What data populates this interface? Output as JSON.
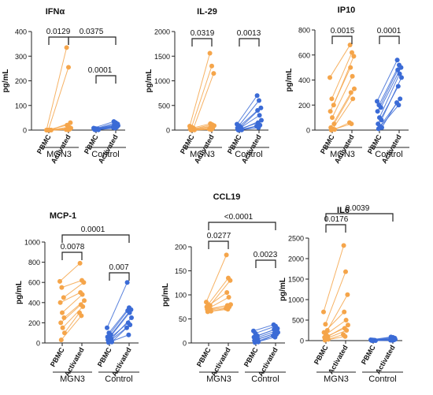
{
  "colors": {
    "mgn3": "#F5A54A",
    "control": "#3B6BD6",
    "axis": "#222222"
  },
  "chart_data": [
    {
      "type": "scatter",
      "title": "IFNα",
      "ylabel": "pg/mL",
      "ylim": [
        0,
        400
      ],
      "yticks": [
        "0",
        "100",
        "200",
        "300",
        "400"
      ],
      "xticks": [
        "PBMC",
        "Activated",
        "PBMC",
        "Activated"
      ],
      "groups": [
        "MGN3",
        "Control"
      ],
      "series": [
        {
          "group": "MGN3",
          "pbmc": [
            0,
            0,
            0,
            0,
            0,
            0,
            0,
            0,
            0,
            0
          ],
          "activated": [
            335,
            255,
            30,
            20,
            12,
            8,
            5,
            3,
            2,
            1
          ]
        },
        {
          "group": "Control",
          "pbmc": [
            8,
            6,
            5,
            4,
            3,
            3,
            2,
            2,
            1,
            1
          ],
          "activated": [
            35,
            30,
            25,
            22,
            20,
            18,
            15,
            12,
            10,
            8
          ]
        }
      ],
      "annotations": [
        "0.0129",
        "0.0375",
        "0.0001"
      ]
    },
    {
      "type": "scatter",
      "title": "IL-29",
      "ylabel": "pg/mL",
      "ylim": [
        0,
        2000
      ],
      "yticks": [
        "0",
        "500",
        "1000",
        "1500",
        "2000"
      ],
      "xticks": [
        "PBMC",
        "Activated",
        "PBMC",
        "Activated"
      ],
      "groups": [
        "MGN3",
        "Control"
      ],
      "series": [
        {
          "group": "MGN3",
          "pbmc": [
            80,
            60,
            40,
            30,
            20,
            15,
            10,
            5,
            3,
            0
          ],
          "activated": [
            1560,
            1300,
            1150,
            130,
            110,
            90,
            60,
            40,
            20,
            10
          ]
        },
        {
          "group": "Control",
          "pbmc": [
            120,
            90,
            60,
            40,
            30,
            20,
            10,
            5,
            3,
            0
          ],
          "activated": [
            700,
            600,
            450,
            400,
            300,
            200,
            150,
            100,
            80,
            50
          ]
        }
      ],
      "annotations": [
        "0.0319",
        "0.0013"
      ]
    },
    {
      "type": "scatter",
      "title": "IP10",
      "ylabel": "pg/mL",
      "ylim": [
        0,
        800
      ],
      "yticks": [
        "0",
        "200",
        "400",
        "600",
        "800"
      ],
      "xticks": [
        "PBMC",
        "Activated",
        "PBMC",
        "Activated"
      ],
      "groups": [
        "MGN3",
        "Control"
      ],
      "series": [
        {
          "group": "MGN3",
          "pbmc": [
            420,
            250,
            200,
            150,
            100,
            50,
            20,
            10,
            5,
            0
          ],
          "activated": [
            680,
            620,
            590,
            500,
            430,
            330,
            300,
            250,
            60,
            50
          ]
        },
        {
          "group": "Control",
          "pbmc": [
            230,
            200,
            180,
            150,
            100,
            80,
            50,
            30,
            20,
            10
          ],
          "activated": [
            560,
            520,
            500,
            480,
            450,
            420,
            350,
            250,
            220,
            200
          ]
        }
      ],
      "annotations": [
        "0.0015",
        "0.0001"
      ]
    },
    {
      "type": "scatter",
      "title": "MCP-1",
      "ylabel": "pg/mL",
      "ylim": [
        0,
        1000
      ],
      "yticks": [
        "0",
        "200",
        "400",
        "600",
        "800",
        "1000"
      ],
      "xticks": [
        "PBMC",
        "Activated",
        "PBMC",
        "Activated"
      ],
      "groups": [
        "MGN3",
        "Control"
      ],
      "series": [
        {
          "group": "MGN3",
          "pbmc": [
            610,
            550,
            450,
            400,
            300,
            250,
            200,
            150,
            100,
            30
          ],
          "activated": [
            790,
            620,
            600,
            500,
            480,
            420,
            380,
            360,
            300,
            270
          ]
        },
        {
          "group": "Control",
          "pbmc": [
            150,
            100,
            80,
            60,
            50,
            40,
            30,
            20,
            10,
            5
          ],
          "activated": [
            600,
            350,
            330,
            320,
            300,
            250,
            200,
            180,
            150,
            80
          ]
        }
      ],
      "annotations": [
        "0.0078",
        "0.0001",
        "0.007"
      ]
    },
    {
      "type": "scatter",
      "title": "CCL19",
      "ylabel": "pg/mL",
      "ylim": [
        0,
        200
      ],
      "yticks": [
        "0",
        "50",
        "100",
        "150",
        "200"
      ],
      "xticks": [
        "PBMC",
        "Activated",
        "PBMC",
        "Activated"
      ],
      "groups": [
        "MGN3",
        "Control"
      ],
      "series": [
        {
          "group": "MGN3",
          "pbmc": [
            85,
            80,
            78,
            75,
            72,
            70,
            70,
            68,
            66,
            65
          ],
          "activated": [
            183,
            135,
            130,
            105,
            95,
            80,
            78,
            75,
            72,
            70
          ]
        },
        {
          "group": "Control",
          "pbmc": [
            25,
            20,
            15,
            12,
            10,
            8,
            5,
            3,
            2,
            1
          ],
          "activated": [
            38,
            35,
            30,
            28,
            25,
            22,
            20,
            18,
            15,
            12
          ]
        }
      ],
      "annotations": [
        "0.0277",
        "<0.0001",
        "0.0023"
      ]
    },
    {
      "type": "scatter",
      "title": "IL6",
      "ylabel": "pg/mL",
      "ylim": [
        0,
        2500
      ],
      "yticks": [
        "0",
        "500",
        "1000",
        "1500",
        "2000",
        "2500"
      ],
      "xticks": [
        "PBMC",
        "Activated",
        "PBMC",
        "Activated"
      ],
      "groups": [
        "MGN3",
        "Control"
      ],
      "series": [
        {
          "group": "MGN3",
          "pbmc": [
            700,
            400,
            250,
            200,
            150,
            100,
            80,
            50,
            30,
            10
          ],
          "activated": [
            2320,
            1680,
            1120,
            700,
            500,
            380,
            300,
            250,
            150,
            100
          ]
        },
        {
          "group": "Control",
          "pbmc": [
            20,
            15,
            10,
            8,
            5,
            5,
            3,
            2,
            1,
            1
          ],
          "activated": [
            90,
            80,
            60,
            50,
            40,
            30,
            20,
            15,
            10,
            5
          ]
        }
      ],
      "annotations": [
        "0.0176",
        "0.0039"
      ]
    }
  ]
}
